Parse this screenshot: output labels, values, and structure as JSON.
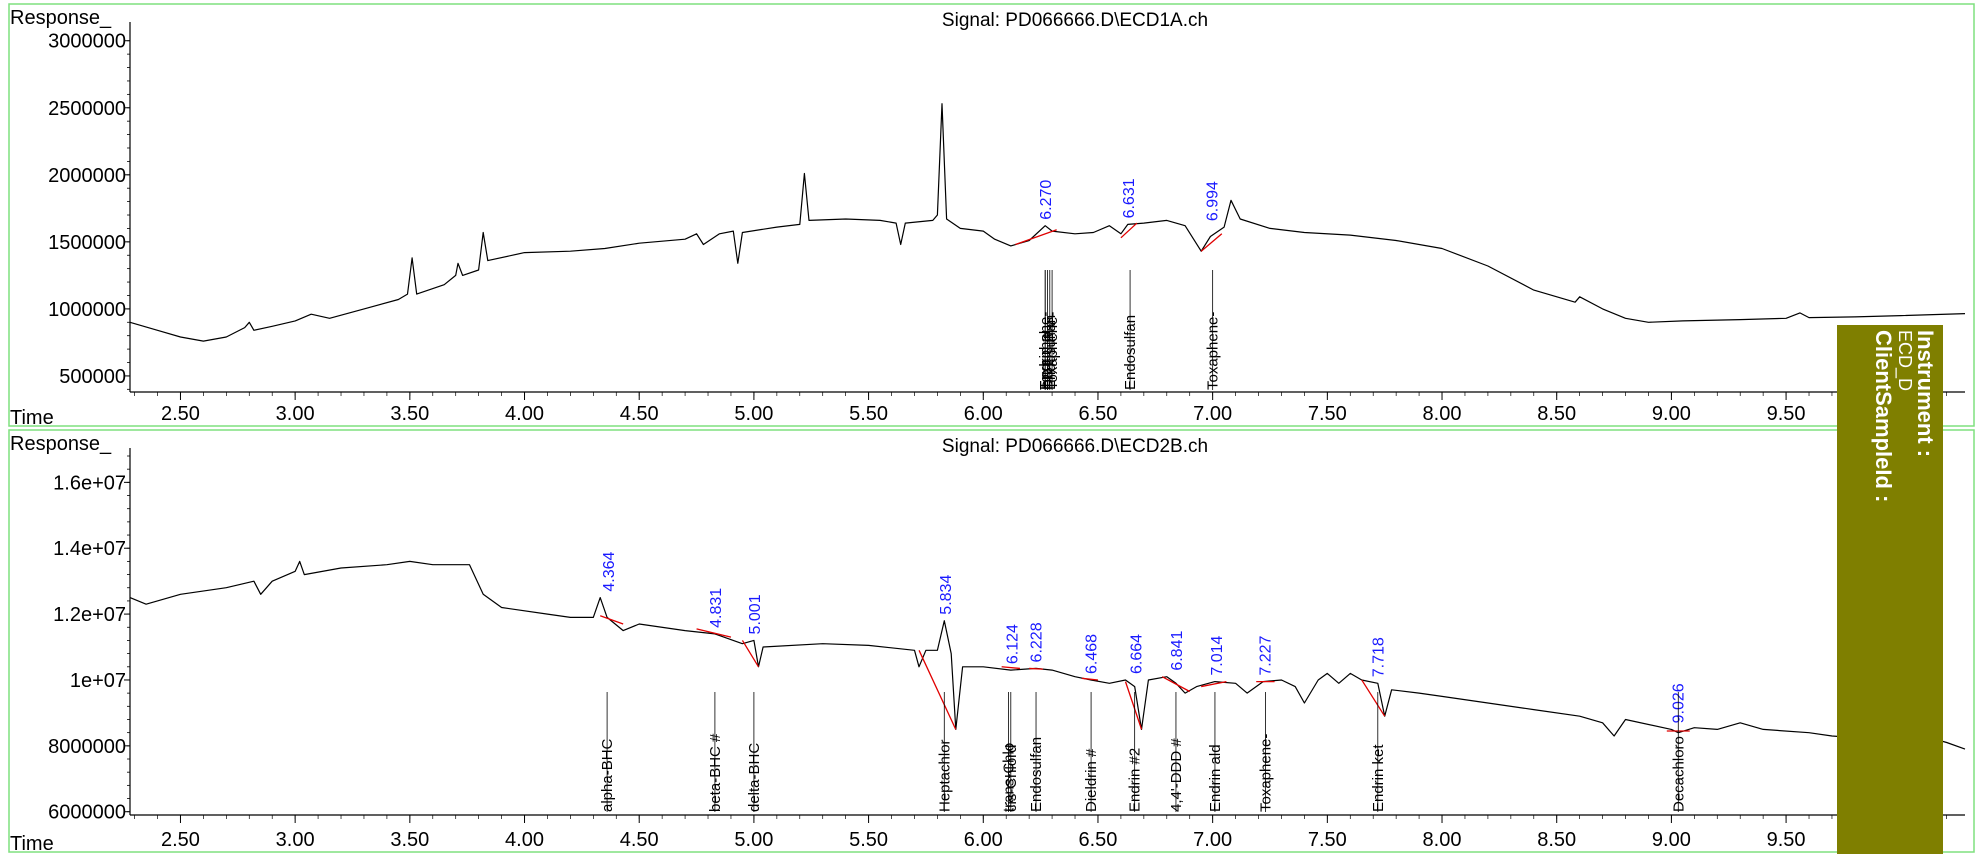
{
  "colors": {
    "frame": "#7fe07f",
    "axis_label": "#1a1aff",
    "peak_label": "#1a1aff",
    "baseline": "#e00000",
    "trace": "#000000",
    "side_panel": "#7f7f00"
  },
  "side_panel": {
    "line1": "Instrument :",
    "line2": "ECD_D",
    "line3": "ClientSampleId :"
  },
  "chart_data": [
    {
      "type": "line",
      "title": "Signal: PD066666.D\\ECD1A.ch",
      "ylabel": "Response_",
      "xlabel": "Time",
      "xlim": [
        2.28,
        10.28
      ],
      "ylim": [
        380000,
        3080000
      ],
      "x_ticks": [
        "2.50",
        "3.00",
        "3.50",
        "4.00",
        "4.50",
        "5.00",
        "5.50",
        "6.00",
        "6.50",
        "7.00",
        "7.50",
        "8.00",
        "8.50",
        "9.00",
        "9.50"
      ],
      "y_ticks": [
        "3000000",
        "2500000",
        "2000000",
        "1500000",
        "1000000",
        "500000"
      ],
      "trace": [
        [
          2.28,
          900000
        ],
        [
          2.4,
          840000
        ],
        [
          2.5,
          790000
        ],
        [
          2.6,
          760000
        ],
        [
          2.7,
          790000
        ],
        [
          2.78,
          860000
        ],
        [
          2.8,
          900000
        ],
        [
          2.82,
          840000
        ],
        [
          2.9,
          870000
        ],
        [
          3.0,
          910000
        ],
        [
          3.07,
          960000
        ],
        [
          3.15,
          930000
        ],
        [
          3.3,
          1000000
        ],
        [
          3.45,
          1070000
        ],
        [
          3.49,
          1110000
        ],
        [
          3.51,
          1380000
        ],
        [
          3.53,
          1110000
        ],
        [
          3.65,
          1180000
        ],
        [
          3.7,
          1250000
        ],
        [
          3.71,
          1340000
        ],
        [
          3.73,
          1250000
        ],
        [
          3.8,
          1290000
        ],
        [
          3.82,
          1570000
        ],
        [
          3.84,
          1360000
        ],
        [
          4.0,
          1420000
        ],
        [
          4.2,
          1430000
        ],
        [
          4.35,
          1450000
        ],
        [
          4.5,
          1490000
        ],
        [
          4.7,
          1520000
        ],
        [
          4.75,
          1560000
        ],
        [
          4.78,
          1480000
        ],
        [
          4.85,
          1560000
        ],
        [
          4.91,
          1580000
        ],
        [
          4.93,
          1340000
        ],
        [
          4.95,
          1570000
        ],
        [
          5.1,
          1610000
        ],
        [
          5.2,
          1630000
        ],
        [
          5.22,
          2010000
        ],
        [
          5.24,
          1660000
        ],
        [
          5.4,
          1670000
        ],
        [
          5.55,
          1660000
        ],
        [
          5.62,
          1640000
        ],
        [
          5.64,
          1480000
        ],
        [
          5.66,
          1640000
        ],
        [
          5.78,
          1660000
        ],
        [
          5.8,
          1700000
        ],
        [
          5.82,
          2530000
        ],
        [
          5.84,
          1670000
        ],
        [
          5.9,
          1600000
        ],
        [
          6.0,
          1580000
        ],
        [
          6.05,
          1520000
        ],
        [
          6.12,
          1470000
        ],
        [
          6.2,
          1510000
        ],
        [
          6.27,
          1620000
        ],
        [
          6.3,
          1580000
        ],
        [
          6.4,
          1560000
        ],
        [
          6.48,
          1570000
        ],
        [
          6.55,
          1620000
        ],
        [
          6.6,
          1560000
        ],
        [
          6.63,
          1630000
        ],
        [
          6.7,
          1640000
        ],
        [
          6.8,
          1660000
        ],
        [
          6.88,
          1620000
        ],
        [
          6.95,
          1430000
        ],
        [
          6.99,
          1540000
        ],
        [
          7.05,
          1610000
        ],
        [
          7.08,
          1810000
        ],
        [
          7.12,
          1670000
        ],
        [
          7.25,
          1600000
        ],
        [
          7.4,
          1570000
        ],
        [
          7.6,
          1550000
        ],
        [
          7.8,
          1510000
        ],
        [
          8.0,
          1450000
        ],
        [
          8.2,
          1320000
        ],
        [
          8.4,
          1140000
        ],
        [
          8.58,
          1050000
        ],
        [
          8.6,
          1090000
        ],
        [
          8.7,
          1000000
        ],
        [
          8.8,
          930000
        ],
        [
          8.9,
          900000
        ],
        [
          9.05,
          910000
        ],
        [
          9.3,
          920000
        ],
        [
          9.5,
          930000
        ],
        [
          9.56,
          970000
        ],
        [
          9.6,
          935000
        ],
        [
          9.8,
          940000
        ],
        [
          10.0,
          950000
        ],
        [
          10.28,
          965000
        ]
      ],
      "peaks": [
        {
          "rt": 6.27,
          "label": "6.270",
          "base": [
            [
              6.14,
              1480000
            ],
            [
              6.32,
              1590000
            ]
          ]
        },
        {
          "rt": 6.631,
          "label": "6.631",
          "base": [
            [
              6.6,
              1530000
            ],
            [
              6.67,
              1640000
            ]
          ]
        },
        {
          "rt": 6.994,
          "label": "6.994",
          "base": [
            [
              6.95,
              1430000
            ],
            [
              7.04,
              1560000
            ]
          ]
        }
      ],
      "compounds": [
        {
          "rt": 6.27,
          "name": "Toxaphene-"
        },
        {
          "rt": 6.27,
          "name": "Endrin al"
        },
        {
          "rt": 6.28,
          "name": "DDT"
        },
        {
          "rt": 6.29,
          "name": "Endosulfan"
        },
        {
          "rt": 6.3,
          "name": "Toxaphene-"
        },
        {
          "rt": 6.64,
          "name": "Endosulfan"
        },
        {
          "rt": 7.0,
          "name": "Toxaphene-"
        }
      ]
    },
    {
      "type": "line",
      "title": "Signal: PD066666.D\\ECD2B.ch",
      "ylabel": "Response_",
      "xlabel": "Time",
      "xlim": [
        2.28,
        10.28
      ],
      "ylim": [
        5900000,
        16800000
      ],
      "x_ticks": [
        "2.50",
        "3.00",
        "3.50",
        "4.00",
        "4.50",
        "5.00",
        "5.50",
        "6.00",
        "6.50",
        "7.00",
        "7.50",
        "8.00",
        "8.50",
        "9.00",
        "9.50"
      ],
      "y_ticks": [
        "1.6e+07",
        "1.4e+07",
        "1.2e+07",
        "1e+07",
        "8000000",
        "6000000"
      ],
      "trace": [
        [
          2.28,
          12500000
        ],
        [
          2.35,
          12300000
        ],
        [
          2.5,
          12600000
        ],
        [
          2.7,
          12800000
        ],
        [
          2.82,
          13000000
        ],
        [
          2.85,
          12600000
        ],
        [
          2.9,
          13000000
        ],
        [
          3.0,
          13300000
        ],
        [
          3.02,
          13600000
        ],
        [
          3.04,
          13200000
        ],
        [
          3.2,
          13400000
        ],
        [
          3.4,
          13500000
        ],
        [
          3.5,
          13600000
        ],
        [
          3.6,
          13500000
        ],
        [
          3.76,
          13500000
        ],
        [
          3.82,
          12600000
        ],
        [
          3.9,
          12200000
        ],
        [
          4.1,
          12000000
        ],
        [
          4.2,
          11900000
        ],
        [
          4.3,
          11900000
        ],
        [
          4.33,
          12500000
        ],
        [
          4.36,
          11900000
        ],
        [
          4.43,
          11500000
        ],
        [
          4.5,
          11700000
        ],
        [
          4.7,
          11500000
        ],
        [
          4.83,
          11400000
        ],
        [
          4.95,
          11100000
        ],
        [
          5.0,
          11200000
        ],
        [
          5.02,
          10400000
        ],
        [
          5.04,
          11000000
        ],
        [
          5.3,
          11100000
        ],
        [
          5.5,
          11050000
        ],
        [
          5.7,
          10900000
        ],
        [
          5.72,
          10400000
        ],
        [
          5.75,
          10900000
        ],
        [
          5.8,
          10900000
        ],
        [
          5.83,
          11800000
        ],
        [
          5.86,
          10800000
        ],
        [
          5.88,
          8500000
        ],
        [
          5.91,
          10400000
        ],
        [
          6.0,
          10400000
        ],
        [
          6.12,
          10300000
        ],
        [
          6.23,
          10350000
        ],
        [
          6.3,
          10300000
        ],
        [
          6.4,
          10100000
        ],
        [
          6.47,
          10000000
        ],
        [
          6.55,
          9900000
        ],
        [
          6.62,
          10000000
        ],
        [
          6.66,
          9800000
        ],
        [
          6.69,
          8500000
        ],
        [
          6.72,
          10000000
        ],
        [
          6.8,
          10100000
        ],
        [
          6.84,
          9900000
        ],
        [
          6.88,
          9600000
        ],
        [
          6.93,
          9800000
        ],
        [
          7.01,
          9950000
        ],
        [
          7.1,
          9900000
        ],
        [
          7.15,
          9600000
        ],
        [
          7.22,
          9950000
        ],
        [
          7.3,
          10000000
        ],
        [
          7.36,
          9800000
        ],
        [
          7.4,
          9300000
        ],
        [
          7.46,
          10000000
        ],
        [
          7.5,
          10200000
        ],
        [
          7.55,
          9900000
        ],
        [
          7.6,
          10200000
        ],
        [
          7.65,
          10000000
        ],
        [
          7.72,
          9900000
        ],
        [
          7.75,
          8900000
        ],
        [
          7.78,
          9700000
        ],
        [
          7.9,
          9600000
        ],
        [
          8.0,
          9500000
        ],
        [
          8.2,
          9300000
        ],
        [
          8.4,
          9100000
        ],
        [
          8.6,
          8900000
        ],
        [
          8.7,
          8700000
        ],
        [
          8.75,
          8300000
        ],
        [
          8.8,
          8800000
        ],
        [
          9.0,
          8500000
        ],
        [
          9.03,
          8400000
        ],
        [
          9.1,
          8550000
        ],
        [
          9.2,
          8500000
        ],
        [
          9.3,
          8700000
        ],
        [
          9.4,
          8500000
        ],
        [
          9.6,
          8400000
        ],
        [
          9.7,
          8300000
        ],
        [
          9.8,
          8250000
        ],
        [
          9.82,
          8600000
        ],
        [
          9.85,
          8200000
        ],
        [
          10.0,
          8400000
        ],
        [
          10.1,
          8300000
        ],
        [
          10.2,
          8100000
        ],
        [
          10.28,
          7900000
        ]
      ],
      "peaks": [
        {
          "rt": 4.364,
          "label": "4.364",
          "base": [
            [
              4.33,
              11950000
            ],
            [
              4.43,
              11700000
            ]
          ]
        },
        {
          "rt": 4.831,
          "label": "4.831",
          "base": [
            [
              4.75,
              11550000
            ],
            [
              4.9,
              11300000
            ]
          ]
        },
        {
          "rt": 5.001,
          "label": "5.001",
          "base": [
            [
              4.95,
              11200000
            ],
            [
              5.02,
              10400000
            ]
          ]
        },
        {
          "rt": 5.834,
          "label": "5.834",
          "base": [
            [
              5.72,
              10900000
            ],
            [
              5.88,
              8500000
            ]
          ]
        },
        {
          "rt": 6.124,
          "label": "6.124",
          "base": [
            [
              6.08,
              10400000
            ],
            [
              6.16,
              10350000
            ]
          ]
        },
        {
          "rt": 6.228,
          "label": "6.228",
          "base": [
            [
              6.2,
              10350000
            ],
            [
              6.26,
              10330000
            ]
          ]
        },
        {
          "rt": 6.468,
          "label": "6.468",
          "base": [
            [
              6.43,
              10050000
            ],
            [
              6.5,
              10000000
            ]
          ]
        },
        {
          "rt": 6.664,
          "label": "6.664",
          "base": [
            [
              6.62,
              9950000
            ],
            [
              6.69,
              8500000
            ]
          ]
        },
        {
          "rt": 6.841,
          "label": "6.841",
          "base": [
            [
              6.78,
              10100000
            ],
            [
              6.9,
              9650000
            ]
          ]
        },
        {
          "rt": 7.014,
          "label": "7.014",
          "base": [
            [
              6.95,
              9800000
            ],
            [
              7.06,
              9950000
            ]
          ]
        },
        {
          "rt": 7.227,
          "label": "7.227",
          "base": [
            [
              7.19,
              9950000
            ],
            [
              7.27,
              9950000
            ]
          ]
        },
        {
          "rt": 7.718,
          "label": "7.718",
          "base": [
            [
              7.65,
              10000000
            ],
            [
              7.75,
              8900000
            ]
          ]
        },
        {
          "rt": 9.026,
          "label": "9.026",
          "base": [
            [
              8.98,
              8450000
            ],
            [
              9.08,
              8450000
            ]
          ]
        }
      ],
      "compounds": [
        {
          "rt": 4.36,
          "name": "alpha-BHC"
        },
        {
          "rt": 4.83,
          "name": "beta-BHC #"
        },
        {
          "rt": 5.0,
          "name": "delta-BHC"
        },
        {
          "rt": 5.83,
          "name": "Heptachlor"
        },
        {
          "rt": 6.11,
          "name": "trans-Chlo"
        },
        {
          "rt": 6.12,
          "name": "cis-Chlord"
        },
        {
          "rt": 6.23,
          "name": "Endosulfan"
        },
        {
          "rt": 6.47,
          "name": "Dieldrin #"
        },
        {
          "rt": 6.66,
          "name": "Endrin #2"
        },
        {
          "rt": 6.84,
          "name": "4,4'-DDD #"
        },
        {
          "rt": 7.01,
          "name": "Endrin ald"
        },
        {
          "rt": 7.23,
          "name": "Toxaphene-"
        },
        {
          "rt": 7.72,
          "name": "Endrin ket"
        },
        {
          "rt": 9.03,
          "name": "Decachloro"
        }
      ]
    }
  ]
}
